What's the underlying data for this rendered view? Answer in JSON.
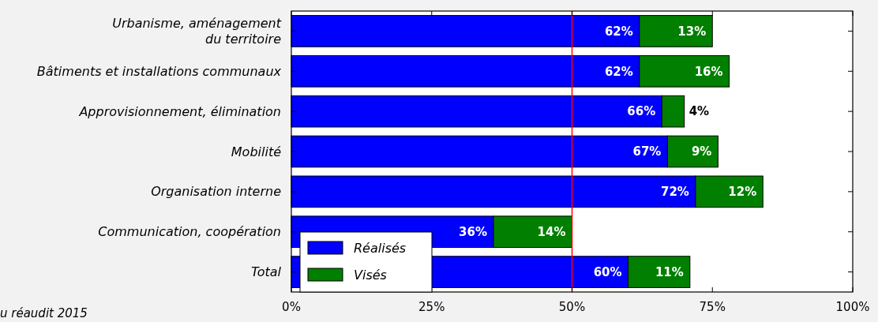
{
  "chart_data": {
    "type": "bar",
    "orientation": "horizontal",
    "stacked": true,
    "categories": [
      "Urbanisme, aménagement\ndu territoire",
      "Bâtiments et installations communaux",
      "Approvisionnement, élimination",
      "Mobilité",
      "Organisation interne",
      "Communication, coopération",
      "Total"
    ],
    "series": [
      {
        "name": "Réalisés",
        "color": "#0000ff",
        "values": [
          62,
          62,
          66,
          67,
          72,
          36,
          60
        ],
        "value_labels": [
          "62%",
          "62%",
          "66%",
          "67%",
          "72%",
          "36%",
          "60%"
        ]
      },
      {
        "name": "Visés",
        "color": "#007f00",
        "values": [
          13,
          16,
          4,
          9,
          12,
          14,
          11
        ],
        "value_labels": [
          "13%",
          "16%",
          "4%",
          "9%",
          "12%",
          "14%",
          "11%"
        ]
      }
    ],
    "xlim": [
      0,
      100
    ],
    "xticks": [
      {
        "value": 0,
        "label": "0%"
      },
      {
        "value": 25,
        "label": "25%"
      },
      {
        "value": 50,
        "label": "50%"
      },
      {
        "value": 75,
        "label": "75%"
      },
      {
        "value": 100,
        "label": "100%"
      }
    ],
    "ref_lines": [
      {
        "axis": "x",
        "value": 50,
        "color": "#ff0000"
      }
    ],
    "legend": "bottom left",
    "annotations": [
      "u réaudit 2015"
    ]
  }
}
